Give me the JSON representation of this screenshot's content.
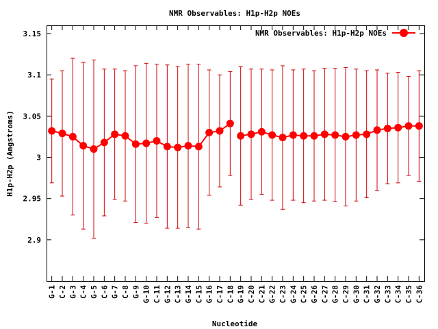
{
  "chart_data": {
    "type": "line",
    "title": "NMR Observables: H1p-H2p NOEs",
    "xlabel": "Nucleotide",
    "ylabel": "H1p-H2p (Angstroms)",
    "ylim": [
      2.85,
      3.16
    ],
    "yticks": [
      2.9,
      2.95,
      3,
      3.05,
      3.1,
      3.15
    ],
    "ytick_labels": [
      "2.9",
      "2.95",
      "3",
      "3.05",
      "3.1",
      "3.15"
    ],
    "legend_position": "top-right",
    "grid": false,
    "categories": [
      "G-1",
      "C-2",
      "G-3",
      "C-4",
      "G-5",
      "C-6",
      "G-7",
      "C-8",
      "G-9",
      "G-10",
      "C-11",
      "G-12",
      "C-13",
      "G-14",
      "C-15",
      "G-16",
      "C-17",
      "C-18",
      "G-19",
      "C-20",
      "C-21",
      "G-22",
      "C-23",
      "G-24",
      "C-25",
      "G-26",
      "C-27",
      "G-28",
      "C-29",
      "G-30",
      "C-31",
      "G-32",
      "C-33",
      "C-34",
      "C-35",
      "C-36"
    ],
    "series": [
      {
        "name": "NMR Observables: H1p-H2p NOEs",
        "color": "#ff0000",
        "errorbar_color": "#cc0000",
        "segments": [
          [
            0,
            17
          ],
          [
            18,
            35
          ]
        ],
        "values": [
          3.032,
          3.029,
          3.025,
          3.014,
          3.01,
          3.018,
          3.028,
          3.026,
          3.016,
          3.017,
          3.02,
          3.013,
          3.012,
          3.014,
          3.013,
          3.03,
          3.032,
          3.041,
          3.026,
          3.028,
          3.031,
          3.027,
          3.024,
          3.027,
          3.026,
          3.026,
          3.028,
          3.027,
          3.025,
          3.027,
          3.028,
          3.033,
          3.035,
          3.036,
          3.038,
          3.038
        ],
        "errors": [
          0.063,
          0.076,
          0.095,
          0.101,
          0.108,
          0.089,
          0.079,
          0.079,
          0.095,
          0.097,
          0.093,
          0.099,
          0.098,
          0.099,
          0.1,
          0.076,
          0.068,
          0.063,
          0.084,
          0.079,
          0.076,
          0.079,
          0.087,
          0.079,
          0.081,
          0.079,
          0.08,
          0.081,
          0.084,
          0.08,
          0.077,
          0.073,
          0.067,
          0.067,
          0.06,
          0.067
        ]
      }
    ]
  }
}
